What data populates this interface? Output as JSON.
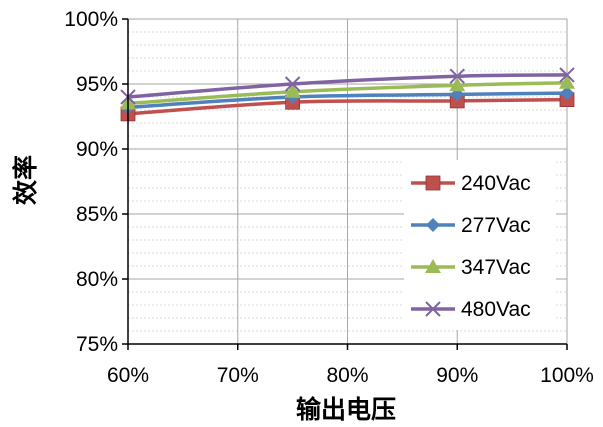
{
  "chart_data": {
    "type": "line",
    "title": "",
    "xlabel": "输出电压",
    "ylabel": "效率",
    "x": [
      60,
      75,
      90,
      100
    ],
    "x_ticks": [
      60,
      70,
      80,
      90,
      100
    ],
    "x_tick_labels": [
      "60%",
      "70%",
      "80%",
      "90%",
      "100%"
    ],
    "xlim": [
      60,
      100
    ],
    "y_ticks": [
      75,
      80,
      85,
      90,
      95,
      100
    ],
    "y_tick_labels": [
      "75%",
      "80%",
      "85%",
      "90%",
      "95%",
      "100%"
    ],
    "ylim": [
      75,
      100
    ],
    "grid": true,
    "legend_position": "bottom-right",
    "series": [
      {
        "name": "240Vac",
        "color": "#c0504d",
        "marker": "square",
        "values": [
          92.7,
          93.6,
          93.7,
          93.8
        ]
      },
      {
        "name": "277Vac",
        "color": "#4f81bd",
        "marker": "diamond",
        "values": [
          93.2,
          94.0,
          94.2,
          94.3
        ]
      },
      {
        "name": "347Vac",
        "color": "#9bbb59",
        "marker": "triangle",
        "values": [
          93.5,
          94.4,
          94.9,
          95.1
        ]
      },
      {
        "name": "480Vac",
        "color": "#8064a2",
        "marker": "x",
        "values": [
          94.0,
          95.0,
          95.6,
          95.7
        ]
      }
    ]
  }
}
